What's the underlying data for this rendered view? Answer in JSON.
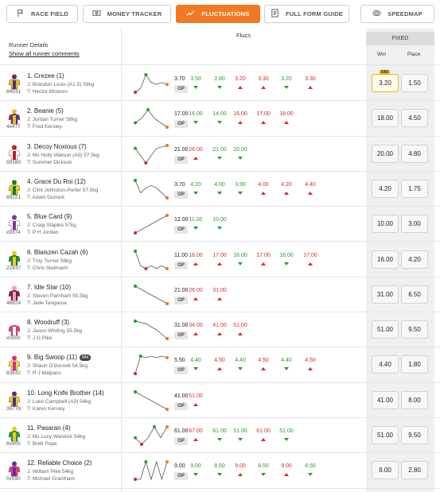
{
  "tabs": [
    {
      "label": "RACE FIELD",
      "icon": "flag-icon"
    },
    {
      "label": "MONEY TRACKER",
      "icon": "money-icon"
    },
    {
      "label": "FLUCTUATIONS",
      "icon": "trend-icon",
      "active": true
    },
    {
      "label": "FULL FORM GUIDE",
      "icon": "document-icon"
    },
    {
      "label": "SPEEDMAP",
      "icon": "speedmap-icon"
    }
  ],
  "header": {
    "runner_details": "Runner Details",
    "show_all": "Show all runner comments",
    "flucs": "Flucs",
    "fixed": "FIXED",
    "win": "Win",
    "place": "Place"
  },
  "op_label": "OP",
  "fav_label": "FAV",
  "runners": [
    {
      "name": "1. Crezee (1)",
      "jockey": "J: Brandon Louis (A1.5) 59kg",
      "trainer": "T: Hector Mclaren",
      "form": "84531",
      "open": "3.70",
      "flucs": [
        {
          "v": "3.50",
          "d": "dn"
        },
        {
          "v": "2.80",
          "d": "dn"
        },
        {
          "v": "3.20",
          "d": "up"
        },
        {
          "v": "3.30",
          "d": "up"
        },
        {
          "v": "3.20",
          "d": "dn"
        },
        {
          "v": "3.30",
          "d": "up"
        }
      ],
      "win": "3.20",
      "place": "1.50",
      "fav": true,
      "silk": [
        "#e8c020",
        "#5a2a82"
      ]
    },
    {
      "name": "2. Beanie (5)",
      "jockey": "J: Jordan Turner 58kg",
      "trainer": "T: Fred Kersley",
      "form": "4x477",
      "open": "17.00",
      "flucs": [
        {
          "v": "16.00",
          "d": "dn"
        },
        {
          "v": "14.00",
          "d": "dn"
        },
        {
          "v": "16.00",
          "d": "up"
        },
        {
          "v": "17.00",
          "d": "up"
        },
        {
          "v": "18.00",
          "d": "up"
        }
      ],
      "win": "18.00",
      "place": "4.50",
      "silk": [
        "#6a2a8a",
        "#e8c020"
      ]
    },
    {
      "name": "3. Decoy Noxious (7)",
      "jockey": "J: Ms Holly Watson (A0) 57.5kg",
      "trainer": "T: Summer Dickson",
      "form": "59160",
      "open": "21.00",
      "flucs": [
        {
          "v": "26.00",
          "d": "up"
        },
        {
          "v": "21.00",
          "d": "dn"
        },
        {
          "v": "20.00",
          "d": "dn"
        }
      ],
      "win": "20.00",
      "place": "4.80",
      "silk": [
        "#ffffff",
        "#c02020"
      ]
    },
    {
      "name": "4. Grace Du Roi (12)",
      "jockey": "J: Clint Johnston-Porter 57.5kg",
      "trainer": "T: Adam Durrant",
      "form": "89221",
      "open": "3.70",
      "flucs": [
        {
          "v": "4.20",
          "d": "dn"
        },
        {
          "v": "4.00",
          "d": "dn"
        },
        {
          "v": "3.90",
          "d": "dn"
        },
        {
          "v": "4.00",
          "d": "up"
        },
        {
          "v": "4.20",
          "d": "up"
        },
        {
          "v": "4.40",
          "d": "up"
        }
      ],
      "win": "4.20",
      "place": "1.75",
      "silk": [
        "#e8d020",
        "#1a7a2a"
      ]
    },
    {
      "name": "5. Blue Card (9)",
      "jockey": "J: Craig Staples 57kg",
      "trainer": "T: P H Jordan",
      "form": "x9374",
      "open": "12.00",
      "flucs": [
        {
          "v": "11.00",
          "d": "dn"
        },
        {
          "v": "10.00",
          "d": "dn"
        }
      ],
      "win": "10.00",
      "place": "3.00",
      "silk": [
        "#ffffff",
        "#7a3a9a"
      ]
    },
    {
      "name": "6. Blaiszen Cazah (6)",
      "jockey": "J: Troy Turner 56kg",
      "trainer": "T: Chris Stelmach",
      "form": "22437",
      "open": "11.00",
      "flucs": [
        {
          "v": "16.00",
          "d": "up"
        },
        {
          "v": "17.00",
          "d": "up"
        },
        {
          "v": "16.00",
          "d": "dn"
        },
        {
          "v": "17.00",
          "d": "up"
        },
        {
          "v": "16.00",
          "d": "dn"
        },
        {
          "v": "17.00",
          "d": "up"
        }
      ],
      "win": "16.00",
      "place": "4.20",
      "silk": [
        "#1a8a2a",
        "#e8d020"
      ]
    },
    {
      "name": "7. Idle Star (10)",
      "jockey": "J: Steven Parnham 55.5kg",
      "trainer": "T: Jade Tangaroa",
      "form": "46824",
      "open": "21.00",
      "flucs": [
        {
          "v": "26.00",
          "d": "up"
        },
        {
          "v": "31.00",
          "d": "up"
        }
      ],
      "win": "31.00",
      "place": "6.50",
      "silk": [
        "#8a1a3a",
        "#f0a0c0"
      ]
    },
    {
      "name": "8. Woodruff (3)",
      "jockey": "J: Jason Whiting 55.5kg",
      "trainer": "T: J G Pike",
      "form": "x0500",
      "open": "31.00",
      "flucs": [
        {
          "v": "34.00",
          "d": "up"
        },
        {
          "v": "41.00",
          "d": "up"
        },
        {
          "v": "51.00",
          "d": "up"
        }
      ],
      "win": "51.00",
      "place": "9.50",
      "silk": [
        "#e83a6a",
        "#ffffff"
      ]
    },
    {
      "name": "9. Big Swoop (11)",
      "badge": "MM",
      "jockey": "J: Shaun O'donnell 54.5kg",
      "trainer": "T: R J Malpass",
      "form": "83632",
      "open": "5.50",
      "flucs": [
        {
          "v": "4.40",
          "d": "dn"
        },
        {
          "v": "4.50",
          "d": "up"
        },
        {
          "v": "4.40",
          "d": "dn"
        },
        {
          "v": "4.50",
          "d": "up"
        },
        {
          "v": "4.40",
          "d": "dn"
        },
        {
          "v": "4.50",
          "d": "up"
        }
      ],
      "win": "4.40",
      "place": "1.80",
      "silk": [
        "#f0e040",
        "#e02a8a"
      ]
    },
    {
      "name": "10. Long Knife Brother (14)",
      "jockey": "J: Luke Campbell (A3) 54kg",
      "trainer": "T: Karen Kersley",
      "form": "35778",
      "open": "41.00",
      "flucs": [
        {
          "v": "51.00",
          "d": "up"
        }
      ],
      "win": "41.00",
      "place": "8.00",
      "silk": [
        "#e8d020",
        "#5a2a82"
      ]
    },
    {
      "name": "11. Pasaran (4)",
      "jockey": "J: Ms Lucy Warwick 54kg",
      "trainer": "T: Brett Pope",
      "form": "8x905",
      "open": "61.00",
      "flucs": [
        {
          "v": "67.00",
          "d": "up"
        },
        {
          "v": "61.00",
          "d": "dn"
        },
        {
          "v": "51.00",
          "d": "dn"
        },
        {
          "v": "61.00",
          "d": "up"
        },
        {
          "v": "51.00",
          "d": "dn"
        }
      ],
      "win": "51.00",
      "place": "9.50",
      "silk": [
        "#2a9a3a",
        "#e8d020"
      ]
    },
    {
      "name": "12. Reliable Choice (2)",
      "jockey": "J: William Pike 54kg",
      "trainer": "T: Michael Grantham",
      "form": "0x590",
      "open": "9.00",
      "flucs": [
        {
          "v": "9.00",
          "d": "dn"
        },
        {
          "v": "8.50",
          "d": "dn"
        },
        {
          "v": "9.00",
          "d": "up"
        },
        {
          "v": "8.50",
          "d": "dn"
        },
        {
          "v": "9.00",
          "d": "up"
        },
        {
          "v": "8.50",
          "d": "dn"
        }
      ],
      "win": "9.00",
      "place": "2.80",
      "silk": [
        "#e83a8a",
        "#6a2a9a"
      ]
    }
  ]
}
